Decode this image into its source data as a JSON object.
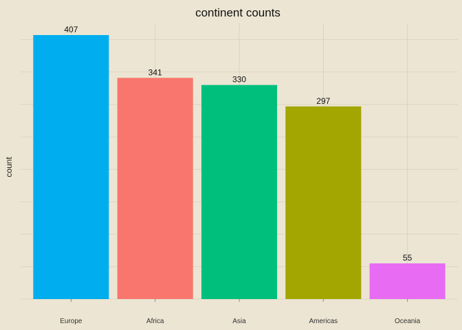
{
  "chart_data": {
    "type": "bar",
    "title": "continent counts",
    "xlabel": "",
    "ylabel": "count",
    "categories": [
      "Europe",
      "Africa",
      "Asia",
      "Americas",
      "Oceania"
    ],
    "values": [
      407,
      341,
      330,
      297,
      55
    ],
    "data_labels": [
      "407",
      "341",
      "330",
      "297",
      "55"
    ],
    "colors": [
      "#00AEEF",
      "#F8766D",
      "#00BF7D",
      "#A3A500",
      "#E76BF3"
    ],
    "ylim": [
      0,
      425
    ],
    "y_tick_labels_shown": false,
    "grid": true,
    "background_color": "#ECE5D3",
    "grid_color": "#D8D0BC",
    "legend": "none"
  }
}
